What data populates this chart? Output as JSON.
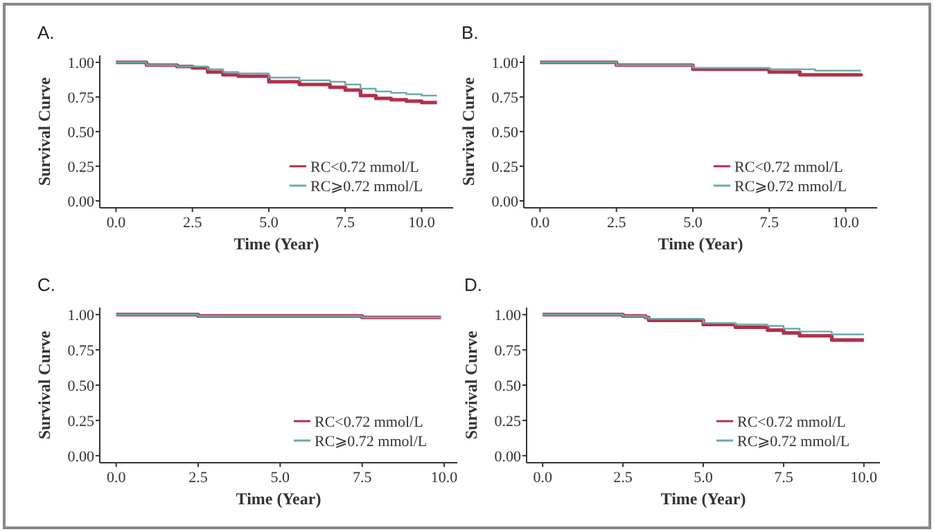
{
  "chart_data": [
    {
      "type": "step",
      "title": "A.",
      "xlabel": "Time (Year)",
      "ylabel": "Survival Curve",
      "xlim": [
        -0.53,
        11.03
      ],
      "ylim": [
        -0.05,
        1.05
      ],
      "xticks": [
        {
          "value": 0,
          "label": "0.0"
        },
        {
          "value": 2.5,
          "label": "2.5"
        },
        {
          "value": 5,
          "label": "5.0"
        },
        {
          "value": 7.5,
          "label": "7.5"
        },
        {
          "value": 10,
          "label": "10.0"
        }
      ],
      "yticks": [
        {
          "value": 0,
          "label": "0.00"
        },
        {
          "value": 0.25,
          "label": "0.25"
        },
        {
          "value": 0.5,
          "label": "0.50"
        },
        {
          "value": 0.75,
          "label": "0.75"
        },
        {
          "value": 1,
          "label": "1.00"
        }
      ],
      "legend": "bottom right",
      "grid": false,
      "series": [
        {
          "name": "RC<0.72 mmol/L",
          "color": "#b0304a",
          "x": [
            0,
            1,
            2,
            2.5,
            3,
            3.5,
            4,
            5,
            6,
            7,
            7.5,
            8,
            8.5,
            9,
            9.5,
            10,
            10.5
          ],
          "values": [
            1,
            0.98,
            0.97,
            0.96,
            0.93,
            0.91,
            0.9,
            0.86,
            0.84,
            0.82,
            0.8,
            0.76,
            0.74,
            0.73,
            0.72,
            0.71,
            0.71
          ]
        },
        {
          "name": "RC⩾0.72 mmol/L",
          "color": "#6aaaa8",
          "x": [
            0,
            1,
            2,
            2.5,
            3,
            3.5,
            4,
            5,
            6,
            7,
            7.5,
            8,
            8.5,
            9,
            9.5,
            10,
            10.5
          ],
          "values": [
            1,
            0.98,
            0.97,
            0.97,
            0.95,
            0.93,
            0.92,
            0.89,
            0.87,
            0.86,
            0.84,
            0.81,
            0.79,
            0.78,
            0.77,
            0.76,
            0.76
          ]
        }
      ]
    },
    {
      "type": "step",
      "title": "B.",
      "xlabel": "Time (Year)",
      "ylabel": "Survival Curve",
      "xlim": [
        -0.53,
        11.03
      ],
      "ylim": [
        -0.05,
        1.05
      ],
      "xticks": [
        {
          "value": 0,
          "label": "0.0"
        },
        {
          "value": 2.5,
          "label": "2.5"
        },
        {
          "value": 5,
          "label": "5.0"
        },
        {
          "value": 7.5,
          "label": "7.5"
        },
        {
          "value": 10,
          "label": "10.0"
        }
      ],
      "yticks": [
        {
          "value": 0,
          "label": "0.00"
        },
        {
          "value": 0.25,
          "label": "0.25"
        },
        {
          "value": 0.5,
          "label": "0.50"
        },
        {
          "value": 0.75,
          "label": "0.75"
        },
        {
          "value": 1,
          "label": "1.00"
        }
      ],
      "legend": "bottom right",
      "grid": false,
      "series": [
        {
          "name": "RC<0.72 mmol/L",
          "color": "#b0304a",
          "x": [
            0,
            2.5,
            5,
            7.5,
            8.5,
            10.5
          ],
          "values": [
            1,
            0.98,
            0.95,
            0.93,
            0.91,
            0.9
          ]
        },
        {
          "name": "RC⩾0.72 mmol/L",
          "color": "#6aaaa8",
          "x": [
            0,
            2.5,
            5,
            7.5,
            9,
            10.5
          ],
          "values": [
            1,
            0.98,
            0.96,
            0.95,
            0.94,
            0.94
          ]
        }
      ]
    },
    {
      "type": "step",
      "title": "C.",
      "xlabel": "Time (Year)",
      "ylabel": "Survival Curve",
      "xlim": [
        -0.5,
        10.4
      ],
      "ylim": [
        -0.05,
        1.05
      ],
      "xticks": [
        {
          "value": 0,
          "label": "0.0"
        },
        {
          "value": 2.5,
          "label": "2.5"
        },
        {
          "value": 5,
          "label": "5.0"
        },
        {
          "value": 7.5,
          "label": "7.5"
        },
        {
          "value": 10,
          "label": "10.0"
        }
      ],
      "yticks": [
        {
          "value": 0,
          "label": "0.00"
        },
        {
          "value": 0.25,
          "label": "0.25"
        },
        {
          "value": 0.5,
          "label": "0.50"
        },
        {
          "value": 0.75,
          "label": "0.75"
        },
        {
          "value": 1,
          "label": "1.00"
        }
      ],
      "legend": "bottom right",
      "grid": false,
      "series": [
        {
          "name": "RC<0.72 mmol/L",
          "color": "#b0304a",
          "x": [
            0,
            2.5,
            5,
            7.5,
            9.9
          ],
          "values": [
            1,
            0.99,
            0.99,
            0.98,
            0.98
          ]
        },
        {
          "name": "RC⩾0.72 mmol/L",
          "color": "#6aaaa8",
          "x": [
            0,
            2.5,
            5,
            7.5,
            9.9
          ],
          "values": [
            1,
            0.99,
            0.99,
            0.98,
            0.98
          ]
        }
      ]
    },
    {
      "type": "step",
      "title": "D.",
      "xlabel": "Time (Year)",
      "ylabel": "Survival Curve",
      "xlim": [
        -0.5,
        10.5
      ],
      "ylim": [
        -0.05,
        1.05
      ],
      "xticks": [
        {
          "value": 0,
          "label": "0.0"
        },
        {
          "value": 2.5,
          "label": "2.5"
        },
        {
          "value": 5,
          "label": "5.0"
        },
        {
          "value": 7.5,
          "label": "7.5"
        },
        {
          "value": 10,
          "label": "10.0"
        }
      ],
      "yticks": [
        {
          "value": 0,
          "label": "0.00"
        },
        {
          "value": 0.25,
          "label": "0.25"
        },
        {
          "value": 0.5,
          "label": "0.50"
        },
        {
          "value": 0.75,
          "label": "0.75"
        },
        {
          "value": 1,
          "label": "1.00"
        }
      ],
      "legend": "bottom right",
      "grid": false,
      "series": [
        {
          "name": "RC<0.72 mmol/L",
          "color": "#b0304a",
          "x": [
            0,
            2.5,
            3.2,
            3.3,
            5,
            6,
            7,
            7.5,
            8,
            9,
            10
          ],
          "values": [
            1,
            0.99,
            0.98,
            0.96,
            0.93,
            0.91,
            0.89,
            0.87,
            0.85,
            0.82,
            0.82
          ]
        },
        {
          "name": "RC⩾0.72 mmol/L",
          "color": "#6aaaa8",
          "x": [
            0,
            2.5,
            3.2,
            3.3,
            5,
            6,
            7,
            7.5,
            8,
            9,
            10
          ],
          "values": [
            1,
            0.99,
            0.98,
            0.97,
            0.94,
            0.93,
            0.92,
            0.9,
            0.88,
            0.86,
            0.86
          ]
        }
      ]
    }
  ]
}
